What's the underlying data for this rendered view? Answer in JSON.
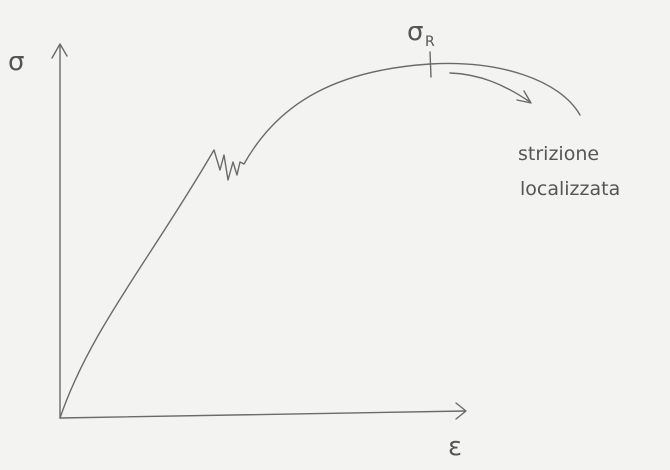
{
  "diagram": {
    "y_axis_label": "σ",
    "x_axis_label": "ε",
    "ultimate_strength": {
      "symbol": "σ",
      "subscript": "R"
    },
    "annotation": {
      "line1": "strizione",
      "line2": "localizzata"
    }
  }
}
